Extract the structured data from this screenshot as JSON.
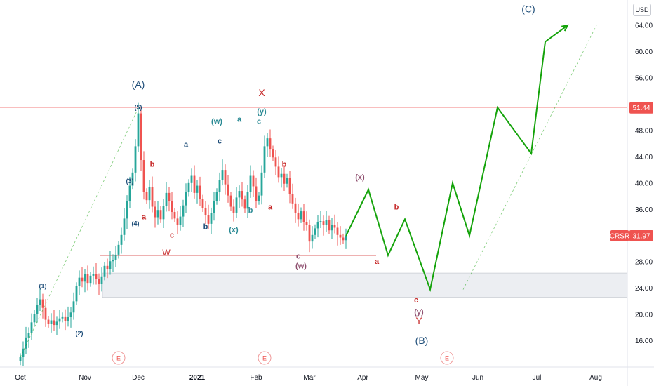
{
  "currency": "USD",
  "symbol_label": "CRSR",
  "last_price_label": "31.97",
  "resistance_price_label": "51.44",
  "colors": {
    "up": "#26a69a",
    "down": "#ef5350",
    "projection": "#14a30a",
    "wave_dark": "#1f4e79",
    "wave_red": "#c62828",
    "wave_teal": "#2a8a94",
    "wave_purple": "#8e4e6e",
    "zone": "#eceef2",
    "badge": "#ef5350"
  },
  "chart_data": {
    "type": "candlestick",
    "ylim": [
      12,
      67
    ],
    "y_ticks": [
      "16.00",
      "20.00",
      "24.00",
      "28.00",
      "32.00",
      "36.00",
      "40.00",
      "44.00",
      "48.00",
      "52.00",
      "56.00",
      "60.00",
      "64.00"
    ],
    "x_ticks": [
      {
        "label": "Oct",
        "bold": false
      },
      {
        "label": "Nov",
        "bold": false
      },
      {
        "label": "Dec",
        "bold": false
      },
      {
        "label": "2021",
        "bold": true
      },
      {
        "label": "Feb",
        "bold": false
      },
      {
        "label": "Mar",
        "bold": false
      },
      {
        "label": "Apr",
        "bold": false
      },
      {
        "label": "May",
        "bold": false
      },
      {
        "label": "Jun",
        "bold": false
      },
      {
        "label": "Jul",
        "bold": false
      },
      {
        "label": "Aug",
        "bold": false
      }
    ],
    "x_tick_index": [
      0,
      23,
      42,
      63,
      84,
      103,
      122,
      143,
      163,
      184,
      205
    ],
    "closes": [
      13.5,
      14.8,
      16.5,
      17.2,
      18.8,
      20.1,
      21.4,
      22.3,
      21.0,
      19.2,
      18.6,
      19.1,
      18.4,
      18.9,
      19.4,
      19.7,
      19.0,
      19.6,
      20.3,
      22.0,
      24.3,
      25.6,
      25.0,
      26.1,
      24.8,
      25.9,
      26.2,
      25.4,
      24.6,
      25.8,
      27.4,
      26.9,
      28.1,
      28.3,
      29.1,
      30.6,
      32.1,
      34.6,
      37.3,
      39.6,
      41.6,
      45.6,
      50.6,
      43.5,
      38.6,
      37.4,
      39.4,
      36.4,
      34.8,
      35.9,
      34.5,
      36.5,
      38.5,
      37.3,
      35.6,
      34.6,
      33.6,
      34.9,
      36.6,
      38.6,
      40.0,
      41.1,
      38.5,
      39.6,
      37.6,
      36.2,
      35.1,
      33.8,
      35.4,
      37.3,
      38.6,
      40.5,
      42.0,
      39.8,
      38.1,
      36.4,
      35.5,
      37.8,
      38.8,
      37.5,
      36.1,
      38.6,
      41.1,
      39.5,
      37.3,
      38.1,
      41.6,
      45.6,
      46.8,
      45.1,
      43.9,
      42.5,
      40.9,
      41.4,
      39.9,
      40.8,
      38.3,
      36.9,
      35.5,
      34.5,
      35.7,
      34.1,
      33.6,
      31.1,
      32.1,
      33.1,
      34.0,
      34.2,
      33.6,
      34.4,
      32.8,
      33.6,
      33.2,
      32.1,
      31.7,
      31.3,
      31.97
    ],
    "series": [
      {
        "name": "projection",
        "x_index": [
          116,
          124,
          131,
          137,
          146,
          154,
          160,
          170,
          182,
          187,
          195
        ],
        "y": [
          31.97,
          39.0,
          29.0,
          34.5,
          23.8,
          40.0,
          32.0,
          51.5,
          44.5,
          61.5,
          64.0
        ]
      }
    ],
    "support_level": 29.0,
    "resistance_level": 51.44,
    "demand_zone": [
      22.6,
      26.3
    ],
    "annotations": {
      "wave_top": [
        {
          "text": "(A)",
          "x": 42,
          "y": 54.5,
          "color": "wave_dark",
          "size": 14
        },
        {
          "text": "(5)",
          "x": 42,
          "y": 51.2,
          "color": "wave_dark",
          "size": 9
        },
        {
          "text": "(3)",
          "x": 39,
          "y": 40.0,
          "color": "wave_dark",
          "size": 9
        },
        {
          "text": "(4)",
          "x": 41,
          "y": 33.5,
          "color": "wave_dark",
          "size": 9
        },
        {
          "text": "(1)",
          "x": 8,
          "y": 24.0,
          "color": "wave_dark",
          "size": 9
        },
        {
          "text": "(2)",
          "x": 21,
          "y": 16.8,
          "color": "wave_dark",
          "size": 9
        },
        {
          "text": "a",
          "x": 44,
          "y": 34.5,
          "color": "wave_red",
          "size": 11
        },
        {
          "text": "b",
          "x": 47,
          "y": 42.5,
          "color": "wave_red",
          "size": 11
        },
        {
          "text": "c",
          "x": 54,
          "y": 31.7,
          "color": "wave_red",
          "size": 11
        },
        {
          "text": "W",
          "x": 52,
          "y": 29.0,
          "color": "wave_red",
          "size": 12
        },
        {
          "text": "a",
          "x": 59,
          "y": 45.5,
          "color": "wave_dark",
          "size": 11
        },
        {
          "text": "b",
          "x": 66,
          "y": 33.0,
          "color": "wave_dark",
          "size": 11
        },
        {
          "text": "c",
          "x": 71,
          "y": 46.0,
          "color": "wave_dark",
          "size": 11
        },
        {
          "text": "(w)",
          "x": 70,
          "y": 49.0,
          "color": "wave_teal",
          "size": 11
        },
        {
          "text": "(x)",
          "x": 76,
          "y": 32.5,
          "color": "wave_teal",
          "size": 11
        },
        {
          "text": "a",
          "x": 78,
          "y": 49.3,
          "color": "wave_teal",
          "size": 11
        },
        {
          "text": "b",
          "x": 82,
          "y": 35.5,
          "color": "wave_teal",
          "size": 11
        },
        {
          "text": "X",
          "x": 86,
          "y": 53.2,
          "color": "wave_red",
          "size": 14
        },
        {
          "text": "(y)",
          "x": 86,
          "y": 50.5,
          "color": "wave_teal",
          "size": 11
        },
        {
          "text": "c",
          "x": 85,
          "y": 49.0,
          "color": "wave_teal",
          "size": 11
        },
        {
          "text": "b",
          "x": 94,
          "y": 42.5,
          "color": "wave_red",
          "size": 11
        },
        {
          "text": "a",
          "x": 89,
          "y": 36.0,
          "color": "wave_red",
          "size": 11
        },
        {
          "text": "c",
          "x": 99,
          "y": 28.5,
          "color": "wave_purple",
          "size": 11
        },
        {
          "text": "(w)",
          "x": 100,
          "y": 27.0,
          "color": "wave_purple",
          "size": 11
        },
        {
          "text": "(x)",
          "x": 121,
          "y": 40.5,
          "color": "wave_purple",
          "size": 11
        },
        {
          "text": "a",
          "x": 127,
          "y": 27.7,
          "color": "wave_red",
          "size": 11
        },
        {
          "text": "b",
          "x": 134,
          "y": 36.0,
          "color": "wave_red",
          "size": 11
        },
        {
          "text": "c",
          "x": 141,
          "y": 21.8,
          "color": "wave_red",
          "size": 11
        },
        {
          "text": "(y)",
          "x": 142,
          "y": 20.0,
          "color": "wave_purple",
          "size": 11
        },
        {
          "text": "Y",
          "x": 142,
          "y": 18.5,
          "color": "wave_red",
          "size": 14
        },
        {
          "text": "(B)",
          "x": 143,
          "y": 15.5,
          "color": "wave_dark",
          "size": 14
        },
        {
          "text": "(C)",
          "x": 181,
          "y": 66.0,
          "color": "wave_dark",
          "size": 14
        }
      ],
      "event_badges": [
        {
          "text": "E",
          "x": 35
        },
        {
          "text": "E",
          "x": 87
        },
        {
          "text": "E",
          "x": 152
        }
      ]
    }
  }
}
